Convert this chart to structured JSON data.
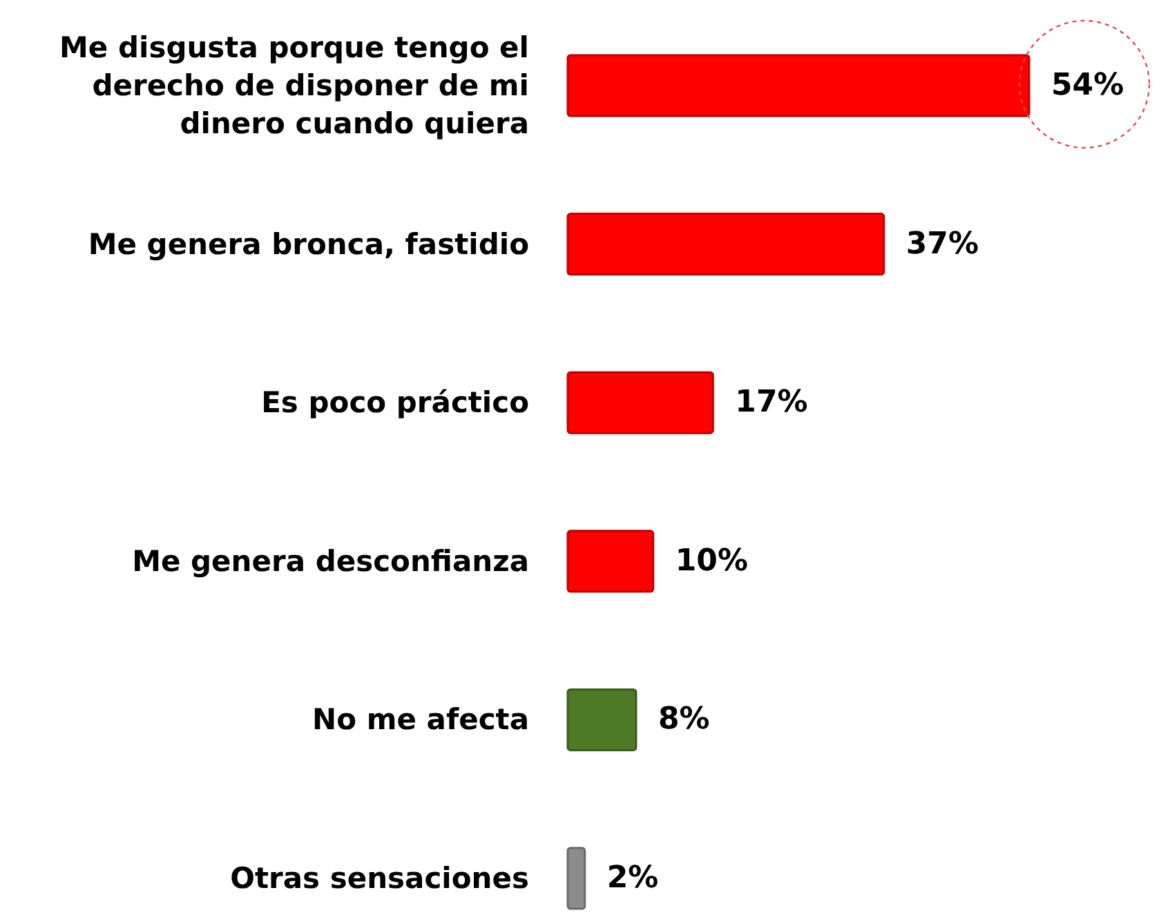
{
  "chart_data": {
    "type": "bar",
    "orientation": "horizontal",
    "categories": [
      "Me disgusta porque tengo el derecho de disponer de mi dinero cuando quiera",
      "Me genera bronca, fastidio",
      "Es poco práctico",
      "Me genera desconfianza",
      "No me afecta",
      "Otras sensaciones"
    ],
    "values": [
      54,
      37,
      17,
      10,
      8,
      2
    ],
    "colors": [
      "#ff0000",
      "#ff0000",
      "#ff0000",
      "#ff0000",
      "#4e7a26",
      "#8c8c8c"
    ],
    "value_labels": [
      "54%",
      "37%",
      "17%",
      "10%",
      "8%",
      "2%"
    ]
  }
}
